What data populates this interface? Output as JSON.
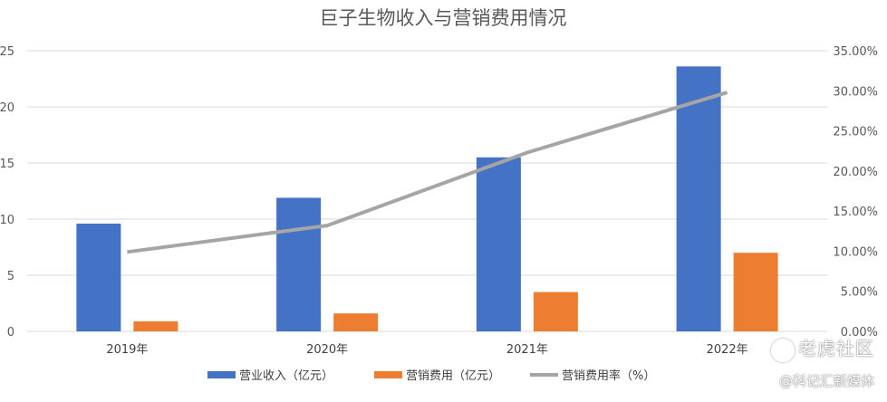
{
  "chart_data": {
    "type": "bar",
    "title": "巨子生物收入与营销费用情况",
    "categories": [
      "2019年",
      "2020年",
      "2021年",
      "2022年"
    ],
    "series": [
      {
        "name": "营业收入（亿元）",
        "type": "bar",
        "axis": "left",
        "color": "#4472C4",
        "values": [
          9.6,
          11.9,
          15.5,
          23.6
        ]
      },
      {
        "name": "营销费用（亿元）",
        "type": "bar",
        "axis": "left",
        "color": "#ED7D31",
        "values": [
          0.9,
          1.6,
          3.5,
          7.0
        ]
      },
      {
        "name": "营销费用率（%）",
        "type": "line",
        "axis": "right",
        "color": "#A5A5A5",
        "values": [
          0.099,
          0.132,
          0.223,
          0.298
        ]
      }
    ],
    "y_left": {
      "min": 0,
      "max": 25,
      "ticks": [
        "0",
        "5",
        "10",
        "15",
        "20",
        "25"
      ]
    },
    "y_right": {
      "min": 0,
      "max": 0.35,
      "ticks": [
        "0.00%",
        "5.00%",
        "10.00%",
        "15.00%",
        "20.00%",
        "25.00%",
        "30.00%",
        "35.00%"
      ]
    },
    "grid": true,
    "legend_position": "bottom"
  },
  "watermarks": {
    "top": "老虎社区",
    "bottom": "@科记汇新媒体"
  }
}
